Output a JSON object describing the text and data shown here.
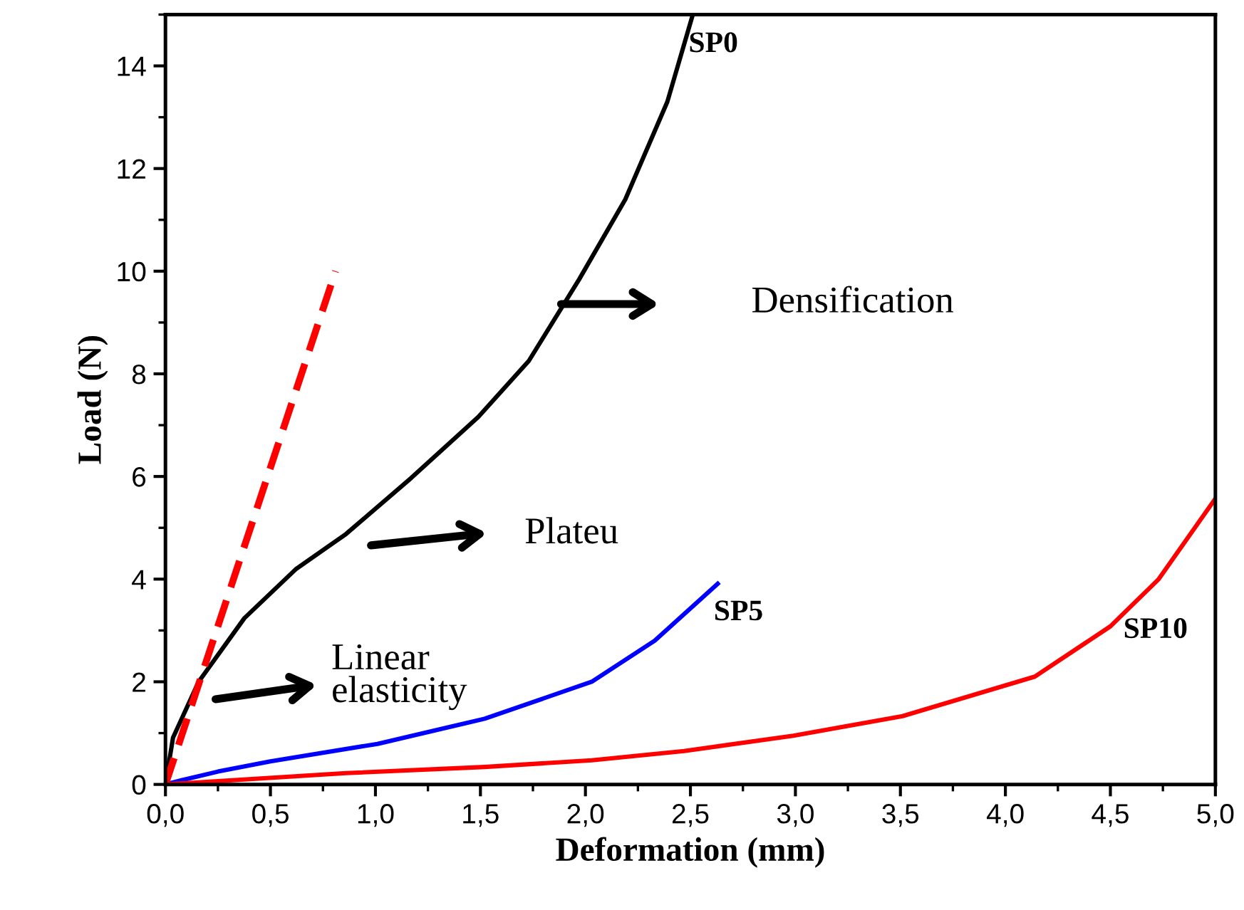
{
  "chart_data": {
    "type": "line",
    "xlabel": "Deformation (mm)",
    "ylabel": "Load (N)",
    "xlim": [
      0,
      5.0
    ],
    "ylim": [
      0,
      15
    ],
    "xticks": [
      {
        "value": 0,
        "label": "0,0"
      },
      {
        "value": 0.5,
        "label": "0,5"
      },
      {
        "value": 1.0,
        "label": "1,0"
      },
      {
        "value": 1.5,
        "label": "1,5"
      },
      {
        "value": 2.0,
        "label": "2,0"
      },
      {
        "value": 2.5,
        "label": "2,5"
      },
      {
        "value": 3.0,
        "label": "3,0"
      },
      {
        "value": 3.5,
        "label": "3,5"
      },
      {
        "value": 4.0,
        "label": "4,0"
      },
      {
        "value": 4.5,
        "label": "4,5"
      },
      {
        "value": 5.0,
        "label": "5,0"
      }
    ],
    "yticks": [
      0,
      2,
      4,
      6,
      8,
      10,
      12,
      14
    ],
    "grid": false,
    "legend": false,
    "marker": "none",
    "series": [
      {
        "name": "SP0",
        "color": "#000000",
        "x": [
          0,
          0.036,
          0.158,
          0.376,
          0.62,
          0.86,
          1.17,
          1.49,
          1.73,
          1.97,
          2.19,
          2.39,
          2.51
        ],
        "values": [
          0,
          0.91,
          2.0,
          3.24,
          4.19,
          4.88,
          5.97,
          7.16,
          8.25,
          9.84,
          11.4,
          13.3,
          14.98
        ]
      },
      {
        "name": "SP5",
        "color": "#0000ff",
        "x": [
          0,
          0.095,
          0.25,
          0.5,
          1.01,
          1.52,
          2.03,
          2.33,
          2.63
        ],
        "values": [
          0,
          0.1,
          0.25,
          0.45,
          0.79,
          1.28,
          2.0,
          2.8,
          3.91
        ]
      },
      {
        "name": "SP10",
        "color": "#ff0000",
        "x": [
          0,
          0.86,
          1.52,
          2.03,
          2.47,
          2.99,
          3.51,
          4.14,
          4.5,
          4.73,
          5.0
        ],
        "values": [
          0,
          0.22,
          0.34,
          0.47,
          0.65,
          0.95,
          1.33,
          2.1,
          3.08,
          4.0,
          5.57
        ]
      },
      {
        "color": "#ff0000",
        "line_style": "dashed",
        "x": [
          0,
          0.81
        ],
        "values": [
          0,
          10.0
        ]
      }
    ],
    "annotations": [
      "Densification",
      "Plateu",
      "Linear\nelasticity"
    ]
  }
}
